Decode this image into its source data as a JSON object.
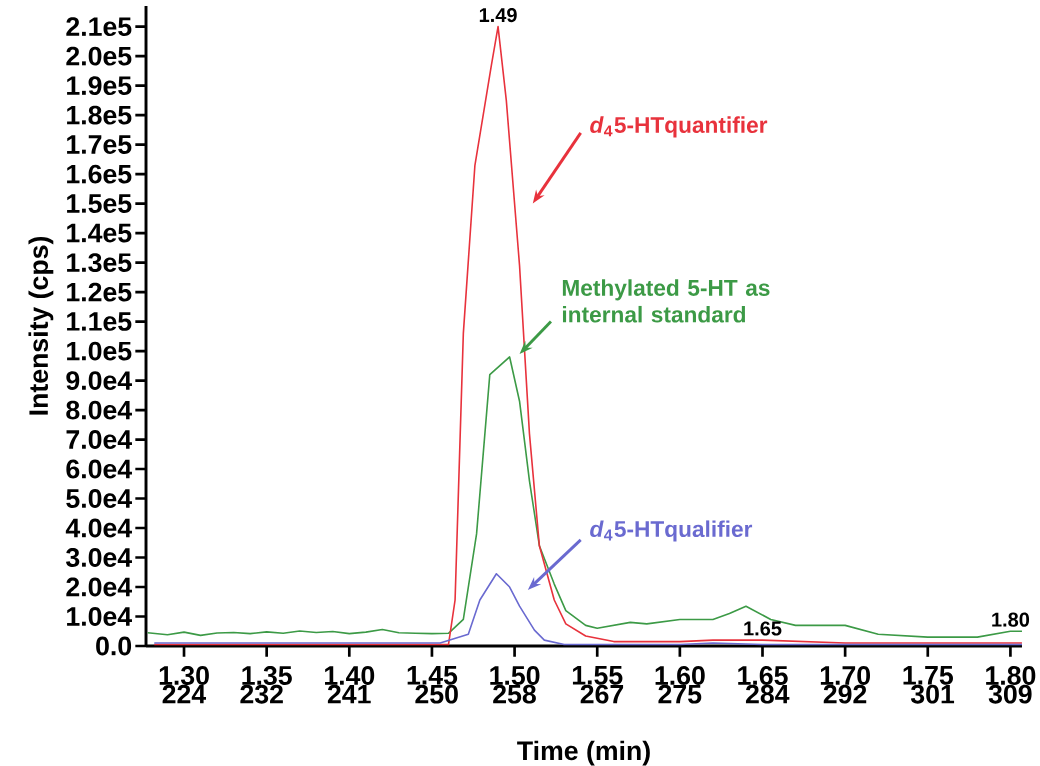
{
  "chart_data": {
    "type": "line",
    "xlabel": "Time (min)",
    "ylabel": "Intensity (cps)",
    "xlim": [
      1.277,
      1.807
    ],
    "x2lim": [
      220.1,
      310.2
    ],
    "ylim": [
      0,
      217000
    ],
    "xticks": [
      {
        "value": 1.3,
        "label": "1.30"
      },
      {
        "value": 1.35,
        "label": "1.35"
      },
      {
        "value": 1.4,
        "label": "1.40"
      },
      {
        "value": 1.45,
        "label": "1.45"
      },
      {
        "value": 1.5,
        "label": "1.50"
      },
      {
        "value": 1.55,
        "label": "1.55"
      },
      {
        "value": 1.6,
        "label": "1.60"
      },
      {
        "value": 1.65,
        "label": "1.65"
      },
      {
        "value": 1.7,
        "label": "1.70"
      },
      {
        "value": 1.75,
        "label": "1.75"
      },
      {
        "value": 1.8,
        "label": "1.80"
      }
    ],
    "x2ticks": [
      224,
      232,
      241,
      250,
      258,
      267,
      275,
      284,
      292,
      301,
      309
    ],
    "yticks": [
      {
        "value": 0,
        "label": "0.0"
      },
      {
        "value": 10000,
        "label": "1.0e4"
      },
      {
        "value": 20000,
        "label": "2.0e4"
      },
      {
        "value": 30000,
        "label": "3.0e4"
      },
      {
        "value": 40000,
        "label": "4.0e4"
      },
      {
        "value": 50000,
        "label": "5.0e4"
      },
      {
        "value": 60000,
        "label": "6.0e4"
      },
      {
        "value": 70000,
        "label": "7.0e4"
      },
      {
        "value": 80000,
        "label": "8.0e4"
      },
      {
        "value": 90000,
        "label": "9.0e4"
      },
      {
        "value": 100000,
        "label": "1.0e5"
      },
      {
        "value": 110000,
        "label": "1.1e5"
      },
      {
        "value": 120000,
        "label": "1.2e5"
      },
      {
        "value": 130000,
        "label": "1.3e5"
      },
      {
        "value": 140000,
        "label": "1.4e5"
      },
      {
        "value": 150000,
        "label": "1.5e5"
      },
      {
        "value": 160000,
        "label": "1.6e5"
      },
      {
        "value": 170000,
        "label": "1.7e5"
      },
      {
        "value": 180000,
        "label": "1.8e5"
      },
      {
        "value": 190000,
        "label": "1.9e5"
      },
      {
        "value": 200000,
        "label": "2.0e5"
      },
      {
        "value": 210000,
        "label": "2.1e5"
      }
    ],
    "grid": false,
    "marker": "none",
    "line_style": "solid",
    "series": [
      {
        "name": "Methylated 5-HT as internal standard",
        "color": "#3c9a46",
        "x": [
          1.278,
          1.29,
          1.3,
          1.31,
          1.32,
          1.33,
          1.34,
          1.35,
          1.36,
          1.37,
          1.38,
          1.39,
          1.4,
          1.41,
          1.42,
          1.43,
          1.44,
          1.45,
          1.46,
          1.469,
          1.477,
          1.485,
          1.497,
          1.503,
          1.509,
          1.515,
          1.524,
          1.531,
          1.543,
          1.55,
          1.57,
          1.58,
          1.6,
          1.62,
          1.63,
          1.64,
          1.655,
          1.67,
          1.7,
          1.72,
          1.75,
          1.78,
          1.8,
          1.807
        ],
        "values": [
          4500,
          3800,
          4700,
          3600,
          4400,
          4600,
          4200,
          4800,
          4300,
          5100,
          4600,
          4900,
          4200,
          4700,
          5600,
          4500,
          4300,
          4200,
          4300,
          9000,
          38000,
          92000,
          98000,
          83000,
          56000,
          34000,
          21000,
          12000,
          7000,
          6000,
          8000,
          7500,
          9000,
          9000,
          11000,
          13500,
          9000,
          7000,
          7000,
          4000,
          3000,
          3000,
          5000,
          5000
        ]
      },
      {
        "name": "*d*$_{4}$5-HTquantifier",
        "color": "#e8323c",
        "x": [
          1.282,
          1.46,
          1.464,
          1.469,
          1.476,
          1.486,
          1.49,
          1.495,
          1.503,
          1.509,
          1.515,
          1.524,
          1.531,
          1.543,
          1.56,
          1.6,
          1.62,
          1.65,
          1.7,
          1.75,
          1.807
        ],
        "values": [
          500,
          500,
          15600,
          106000,
          163000,
          197000,
          210000,
          185000,
          129000,
          72000,
          34000,
          15600,
          7500,
          3400,
          1500,
          1500,
          2000,
          2000,
          1000,
          1000,
          1000
        ]
      },
      {
        "name": "*d*$_{4}$5-HTqualifier",
        "color": "#6a6ad0",
        "x": [
          1.282,
          1.455,
          1.472,
          1.479,
          1.489,
          1.497,
          1.503,
          1.512,
          1.518,
          1.53,
          1.6,
          1.62,
          1.65,
          1.807
        ],
        "values": [
          1000,
          1000,
          4000,
          15600,
          24500,
          20000,
          13500,
          5400,
          2000,
          500,
          500,
          1000,
          500,
          500
        ]
      }
    ],
    "annotations": [
      {
        "text": "1.49",
        "x": 1.49,
        "y": 210000
      },
      {
        "text": "1.65",
        "x": 1.65,
        "y": 2000
      },
      {
        "text": "1.80",
        "x": 1.8,
        "y": 5000
      }
    ]
  }
}
